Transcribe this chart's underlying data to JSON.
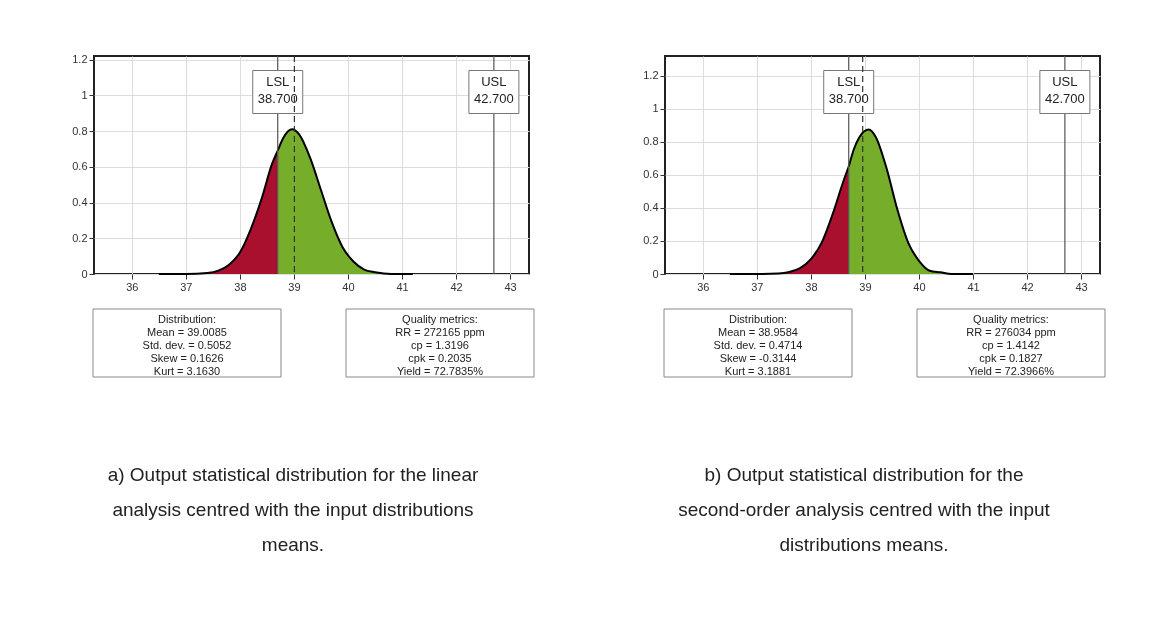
{
  "chart_data": [
    {
      "type": "area",
      "xlim": [
        35.3,
        43.35
      ],
      "ylim": [
        0,
        1.22
      ],
      "xticks": [
        36,
        37,
        38,
        39,
        40,
        41,
        42,
        43
      ],
      "yticks": [
        0,
        0.2,
        0.4,
        0.6,
        0.8,
        1,
        1.2
      ],
      "grid": true,
      "series": [
        {
          "color": "#a8102e",
          "x": [
            36.5,
            37.0,
            37.4,
            37.6,
            37.8,
            38.0,
            38.2,
            38.4,
            38.6,
            38.7
          ],
          "values": [
            0,
            0,
            0.006,
            0.019,
            0.052,
            0.12,
            0.25,
            0.42,
            0.62,
            0.69
          ]
        },
        {
          "color": "#76ad2a",
          "x": [
            38.7,
            38.8,
            38.97,
            39.1,
            39.3,
            39.5,
            39.7,
            39.9,
            40.1,
            40.3,
            40.5,
            40.8,
            41.2
          ],
          "values": [
            0.69,
            0.76,
            0.81,
            0.78,
            0.65,
            0.47,
            0.29,
            0.15,
            0.07,
            0.025,
            0.01,
            0,
            0
          ]
        }
      ],
      "ref_lines": [
        {
          "axis": "x",
          "value": 38.7,
          "label": "LSL\n38.700",
          "color": "#555555"
        },
        {
          "axis": "x",
          "value": 42.7,
          "label": "USL\n42.700",
          "color": "#555555"
        },
        {
          "axis": "x",
          "value": 39.0085,
          "label": null,
          "color": "#333333",
          "line_style": "dashed"
        }
      ],
      "annotations": [
        "Distribution:\nMean = 39.0085\nStd. dev. = 0.5052\nSkew = 0.1626\nKurt = 3.1630",
        "Quality metrics:\nRR = 272165 ppm\ncp = 1.3196\ncpk = 0.2035\nYield = 72.7835%",
        "a) Output statistical distribution for the linear\nanalysis centred with the input distributions\nmeans."
      ]
    },
    {
      "type": "area",
      "xlim": [
        35.3,
        43.35
      ],
      "ylim": [
        0,
        1.32
      ],
      "xticks": [
        36,
        37,
        38,
        39,
        40,
        41,
        42,
        43
      ],
      "yticks": [
        0,
        0.2,
        0.4,
        0.6,
        0.8,
        1,
        1.2
      ],
      "grid": true,
      "series": [
        {
          "color": "#a8102e",
          "x": [
            36.5,
            37.0,
            37.4,
            37.6,
            37.8,
            38.0,
            38.2,
            38.4,
            38.6,
            38.7
          ],
          "values": [
            0,
            0,
            0.003,
            0.012,
            0.035,
            0.09,
            0.19,
            0.36,
            0.56,
            0.65
          ]
        },
        {
          "color": "#76ad2a",
          "x": [
            38.7,
            38.8,
            38.9,
            39.07,
            39.2,
            39.4,
            39.6,
            39.8,
            40.0,
            40.2,
            40.4,
            40.6,
            41.0
          ],
          "values": [
            0.65,
            0.76,
            0.83,
            0.875,
            0.83,
            0.64,
            0.39,
            0.19,
            0.08,
            0.02,
            0.01,
            0,
            0
          ]
        }
      ],
      "ref_lines": [
        {
          "axis": "x",
          "value": 38.7,
          "label": "LSL\n38.700",
          "color": "#555555"
        },
        {
          "axis": "x",
          "value": 42.7,
          "label": "USL\n42.700",
          "color": "#555555"
        },
        {
          "axis": "x",
          "value": 38.9584,
          "label": null,
          "color": "#333333",
          "line_style": "dashed"
        }
      ],
      "annotations": [
        "Distribution:\nMean = 38.9584\nStd. dev. = 0.4714\nSkew = -0.3144\nKurt = 3.1881",
        "Quality metrics:\nRR = 276034 ppm\ncp = 1.4142\ncpk = 0.1827\nYield = 72.3966%",
        "b) Output statistical distribution for the\nsecond-order analysis centred with the input\ndistributions means."
      ]
    }
  ]
}
